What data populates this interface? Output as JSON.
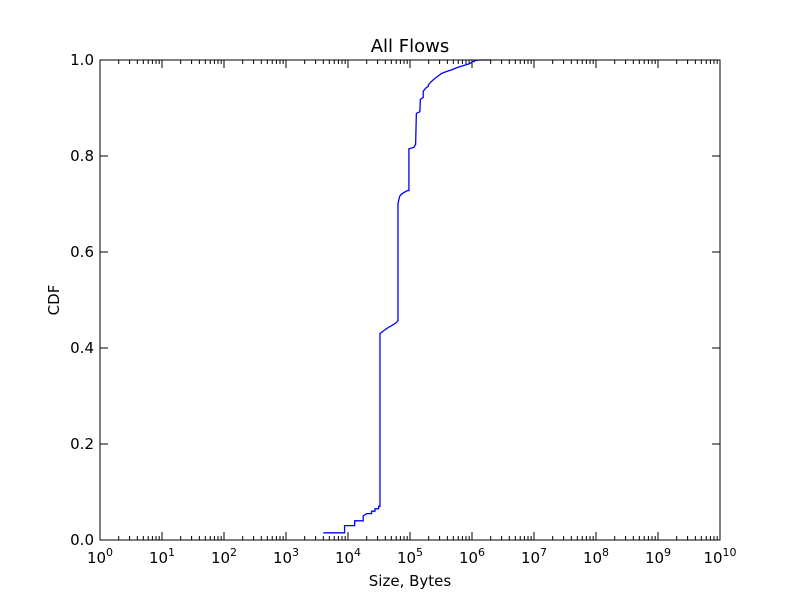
{
  "chart_data": {
    "type": "line",
    "title": "All Flows",
    "xlabel": "Size, Bytes",
    "ylabel": "CDF",
    "x_scale": "log",
    "xlim": [
      1,
      10000000000
    ],
    "ylim": [
      0,
      1
    ],
    "x_ticks": [
      {
        "value": 1,
        "base": "10",
        "exp": "0"
      },
      {
        "value": 10,
        "base": "10",
        "exp": "1"
      },
      {
        "value": 100,
        "base": "10",
        "exp": "2"
      },
      {
        "value": 1000,
        "base": "10",
        "exp": "3"
      },
      {
        "value": 10000,
        "base": "10",
        "exp": "4"
      },
      {
        "value": 100000,
        "base": "10",
        "exp": "5"
      },
      {
        "value": 1000000,
        "base": "10",
        "exp": "6"
      },
      {
        "value": 10000000,
        "base": "10",
        "exp": "7"
      },
      {
        "value": 100000000,
        "base": "10",
        "exp": "8"
      },
      {
        "value": 1000000000,
        "base": "10",
        "exp": "9"
      },
      {
        "value": 10000000000,
        "base": "10",
        "exp": "10"
      }
    ],
    "y_ticks": [
      {
        "value": 0.0,
        "label": "0.0"
      },
      {
        "value": 0.2,
        "label": "0.2"
      },
      {
        "value": 0.4,
        "label": "0.4"
      },
      {
        "value": 0.6,
        "label": "0.6"
      },
      {
        "value": 0.8,
        "label": "0.8"
      },
      {
        "value": 1.0,
        "label": "1.0"
      }
    ],
    "grid": false,
    "line_color": "#0000ff",
    "series": [
      {
        "x": [
          4000,
          8800,
          8800,
          12800,
          12800,
          17600,
          17600,
          20000,
          24000,
          24000,
          27200,
          27200,
          31200,
          31200,
          32800,
          32800,
          35200,
          38400,
          41600,
          46400,
          52800,
          59200,
          64000,
          64000,
          65600,
          67200,
          68800,
          72000,
          80000,
          91200,
          96000,
          96000,
          115200,
          118400,
          120000,
          123200,
          126400,
          126400,
          131200,
          144000,
          147200,
          163200,
          163200,
          176000,
          181600,
          196800,
          196800,
          220800,
          243200,
          286400,
          321600,
          389600,
          480000,
          547200,
          628800,
          710400,
          806400,
          892800,
          958400,
          1014400,
          1089600,
          1089600,
          1360000,
          2000000
        ],
        "y": [
          0.015,
          0.015,
          0.03,
          0.03,
          0.04,
          0.04,
          0.05,
          0.055,
          0.055,
          0.06,
          0.06,
          0.065,
          0.065,
          0.07,
          0.07,
          0.43,
          0.433,
          0.437,
          0.44,
          0.444,
          0.448,
          0.452,
          0.457,
          0.7,
          0.707,
          0.713,
          0.717,
          0.72,
          0.724,
          0.728,
          0.728,
          0.815,
          0.818,
          0.82,
          0.822,
          0.824,
          0.885,
          0.888,
          0.89,
          0.892,
          0.918,
          0.922,
          0.935,
          0.94,
          0.942,
          0.945,
          0.948,
          0.955,
          0.96,
          0.967,
          0.972,
          0.976,
          0.98,
          0.983,
          0.986,
          0.988,
          0.99,
          0.992,
          0.994,
          0.996,
          0.997,
          0.999,
          1.0,
          1.0
        ]
      }
    ]
  }
}
